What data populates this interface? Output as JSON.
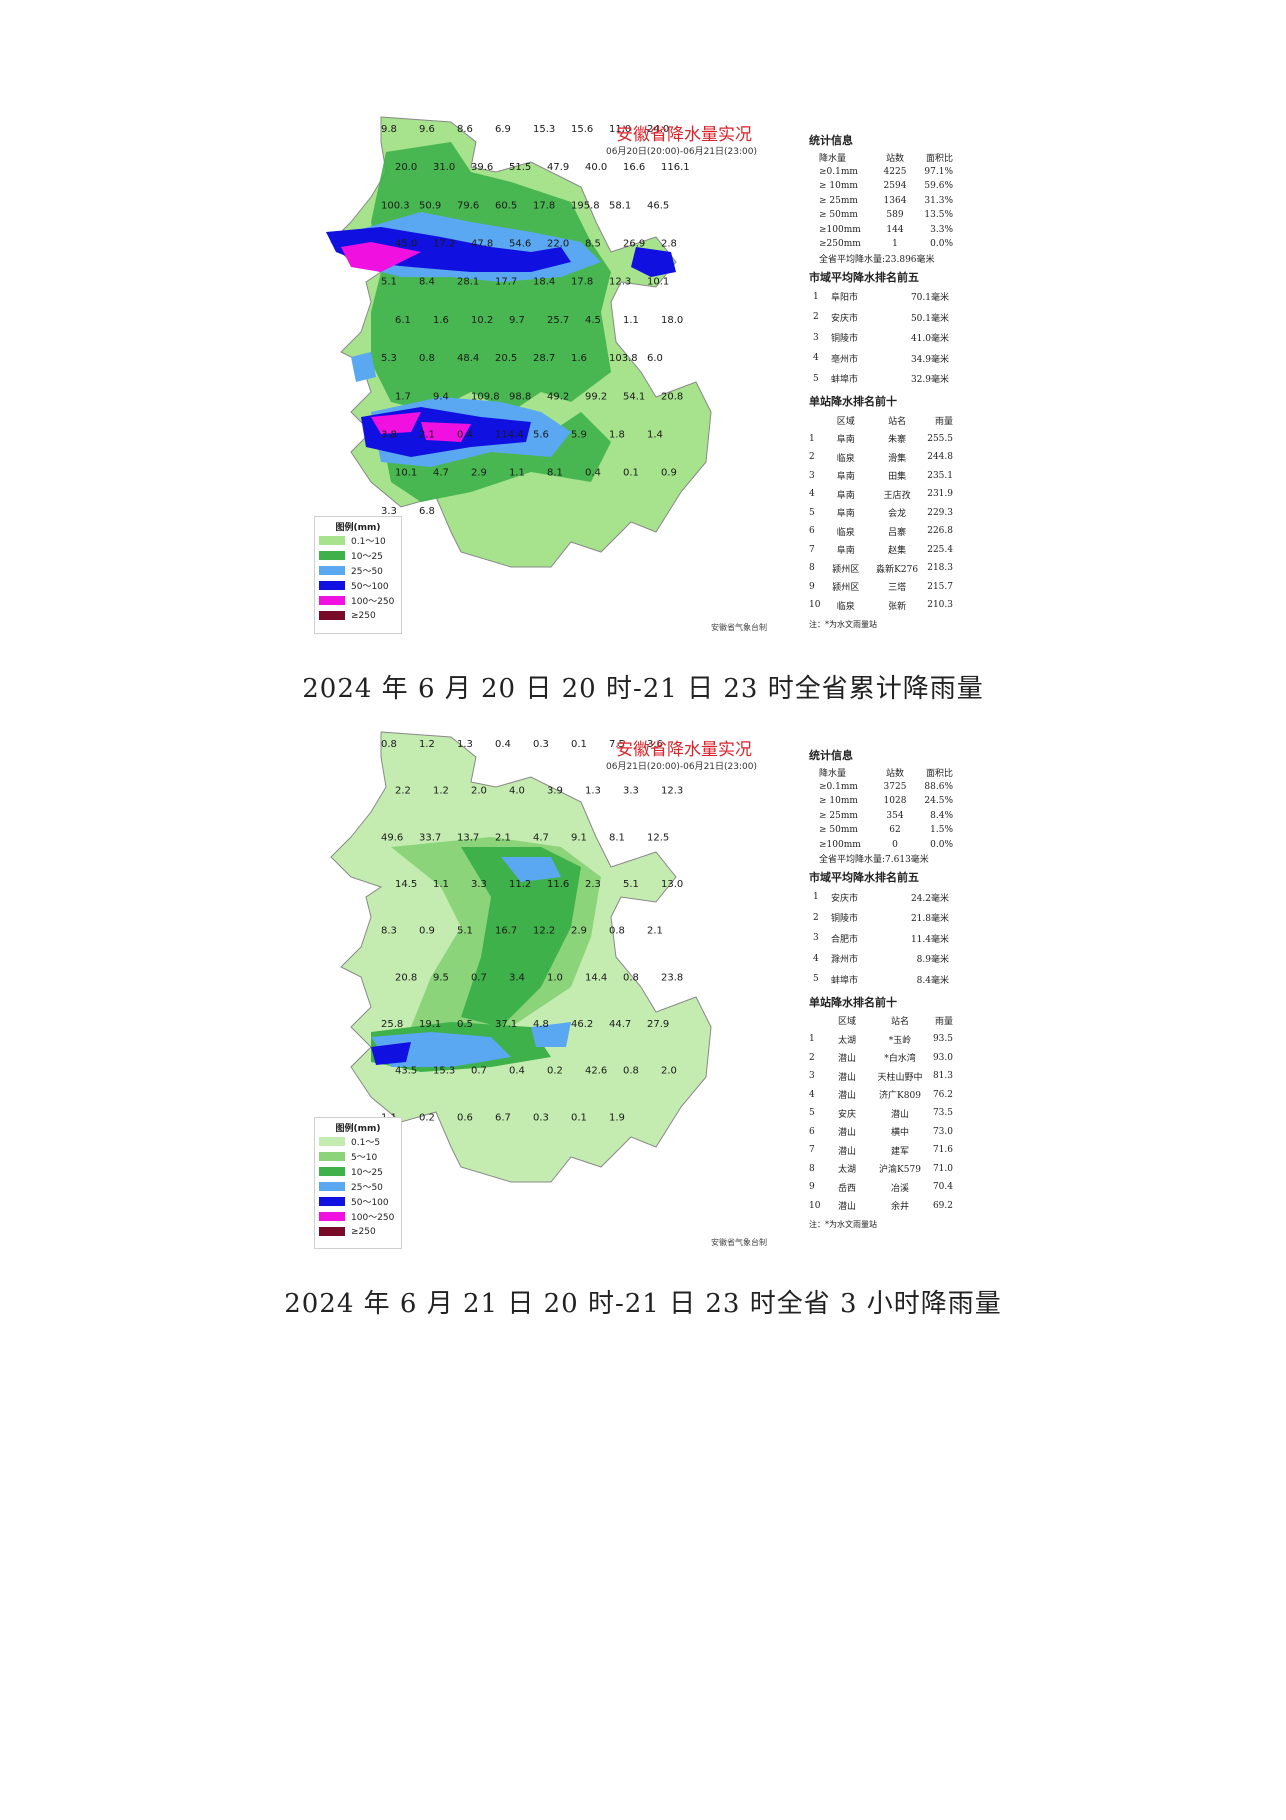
{
  "panel1": {
    "title": "安徽省降水量实况",
    "period": "06月20日(20:00)-06月21日(23:00)",
    "credit": "安徽省气象台制",
    "legend": {
      "title": "图例(mm)",
      "items": [
        {
          "label": "0.1～10",
          "color": "#a6e38c"
        },
        {
          "label": "10～25",
          "color": "#3fb14a"
        },
        {
          "label": "25～50",
          "color": "#5aa7f2"
        },
        {
          "label": "50～100",
          "color": "#1010e0"
        },
        {
          "label": "100～250",
          "color": "#f010e0"
        },
        {
          "label": "≥250",
          "color": "#7a0a2a"
        }
      ]
    },
    "stats": {
      "title": "统计信息",
      "headers": [
        "降水量",
        "站数",
        "面积比"
      ],
      "rows": [
        [
          "≥0.1mm",
          "4225",
          "97.1%"
        ],
        [
          "≥ 10mm",
          "2594",
          "59.6%"
        ],
        [
          "≥ 25mm",
          "1364",
          "31.3%"
        ],
        [
          "≥ 50mm",
          "589",
          "13.5%"
        ],
        [
          "≥100mm",
          "144",
          "3.3%"
        ],
        [
          "≥250mm",
          "1",
          "0.0%"
        ]
      ],
      "average": "全省平均降水量:23.896毫米"
    },
    "city_top5": {
      "title": "市域平均降水排名前五",
      "rows": [
        [
          "1",
          "阜阳市",
          "70.1毫米"
        ],
        [
          "2",
          "安庆市",
          "50.1毫米"
        ],
        [
          "3",
          "铜陵市",
          "41.0毫米"
        ],
        [
          "4",
          "亳州市",
          "34.9毫米"
        ],
        [
          "5",
          "蚌埠市",
          "32.9毫米"
        ]
      ]
    },
    "station_top10": {
      "title": "单站降水排名前十",
      "headers": [
        "",
        "区域",
        "站名",
        "雨量"
      ],
      "rows": [
        [
          "1",
          "阜南",
          "朱寨",
          "255.5"
        ],
        [
          "2",
          "临泉",
          "滑集",
          "244.8"
        ],
        [
          "3",
          "阜南",
          "田集",
          "235.1"
        ],
        [
          "4",
          "阜南",
          "王店孜",
          "231.9"
        ],
        [
          "5",
          "阜南",
          "会龙",
          "229.3"
        ],
        [
          "6",
          "临泉",
          "吕寨",
          "226.8"
        ],
        [
          "7",
          "阜南",
          "赵集",
          "225.4"
        ],
        [
          "8",
          "颍州区",
          "淼新K276",
          "218.3"
        ],
        [
          "9",
          "颍州区",
          "三塔",
          "215.7"
        ],
        [
          "10",
          "临泉",
          "张新",
          "210.3"
        ]
      ],
      "note": "注：*为水文雨量站"
    },
    "map_labels": [
      "9.8",
      "9.6",
      "8.6",
      "6.9",
      "15.3",
      "15.6",
      "11.0",
      "24.0",
      "20.0",
      "31.0",
      "39.6",
      "51.5",
      "47.9",
      "40.0",
      "16.6",
      "116.1",
      "100.3",
      "50.9",
      "79.6",
      "60.5",
      "17.8",
      "195.8",
      "58.1",
      "46.5",
      "45.0",
      "17.2",
      "47.8",
      "54.6",
      "22.0",
      "8.5",
      "26.9",
      "2.8",
      "5.1",
      "8.4",
      "28.1",
      "17.7",
      "18.4",
      "17.8",
      "12.3",
      "10.1",
      "6.1",
      "1.6",
      "10.2",
      "9.7",
      "25.7",
      "4.5",
      "1.1",
      "18.0",
      "5.3",
      "0.8",
      "48.4",
      "20.5",
      "28.7",
      "1.6",
      "103.8",
      "6.0",
      "1.7",
      "9.4",
      "109.8",
      "98.8",
      "49.2",
      "99.2",
      "54.1",
      "20.8",
      "3.8",
      "2.1",
      "0.4",
      "114.4",
      "5.6",
      "5.9",
      "1.8",
      "1.4",
      "10.1",
      "4.7",
      "2.9",
      "1.1",
      "8.1",
      "0.4",
      "0.1",
      "0.9",
      "3.3",
      "6.8"
    ],
    "caption": "2024 年 6 月 20 日 20 时-21 日 23 时全省累计降雨量"
  },
  "panel2": {
    "title": "安徽省降水量实况",
    "period": "06月21日(20:00)-06月21日(23:00)",
    "credit": "安徽省气象台制",
    "legend": {
      "title": "图例(mm)",
      "items": [
        {
          "label": "0.1～5",
          "color": "#c4ecb0"
        },
        {
          "label": "5～10",
          "color": "#8bd47a"
        },
        {
          "label": "10～25",
          "color": "#3fb14a"
        },
        {
          "label": "25～50",
          "color": "#5aa7f2"
        },
        {
          "label": "50～100",
          "color": "#1010e0"
        },
        {
          "label": "100～250",
          "color": "#f010e0"
        },
        {
          "label": "≥250",
          "color": "#7a0a2a"
        }
      ]
    },
    "stats": {
      "title": "统计信息",
      "headers": [
        "降水量",
        "站数",
        "面积比"
      ],
      "rows": [
        [
          "≥0.1mm",
          "3725",
          "88.6%"
        ],
        [
          "≥ 10mm",
          "1028",
          "24.5%"
        ],
        [
          "≥ 25mm",
          "354",
          "8.4%"
        ],
        [
          "≥ 50mm",
          "62",
          "1.5%"
        ],
        [
          "≥100mm",
          "0",
          "0.0%"
        ]
      ],
      "average": "全省平均降水量:7.613毫米"
    },
    "city_top5": {
      "title": "市域平均降水排名前五",
      "rows": [
        [
          "1",
          "安庆市",
          "24.2毫米"
        ],
        [
          "2",
          "铜陵市",
          "21.8毫米"
        ],
        [
          "3",
          "合肥市",
          "11.4毫米"
        ],
        [
          "4",
          "滁州市",
          "8.9毫米"
        ],
        [
          "5",
          "蚌埠市",
          "8.4毫米"
        ]
      ]
    },
    "station_top10": {
      "title": "单站降水排名前十",
      "headers": [
        "",
        "区域",
        "站名",
        "雨量"
      ],
      "rows": [
        [
          "1",
          "太湖",
          "*玉岭",
          "93.5"
        ],
        [
          "2",
          "潜山",
          "*白水湾",
          "93.0"
        ],
        [
          "3",
          "潜山",
          "天柱山野中",
          "81.3"
        ],
        [
          "4",
          "潜山",
          "济广K809",
          "76.2"
        ],
        [
          "5",
          "安庆",
          "潜山",
          "73.5"
        ],
        [
          "6",
          "潜山",
          "横中",
          "73.0"
        ],
        [
          "7",
          "潜山",
          "建军",
          "71.6"
        ],
        [
          "8",
          "太湖",
          "沪渝K579",
          "71.0"
        ],
        [
          "9",
          "岳西",
          "冶溪",
          "70.4"
        ],
        [
          "10",
          "潜山",
          "余井",
          "69.2"
        ]
      ],
      "note": "注：*为水文雨量站"
    },
    "map_labels": [
      "0.8",
      "1.2",
      "1.3",
      "0.4",
      "0.3",
      "0.1",
      "7.5",
      "3.6",
      "2.2",
      "1.2",
      "2.0",
      "4.0",
      "3.9",
      "1.3",
      "3.3",
      "12.3",
      "49.6",
      "33.7",
      "13.7",
      "2.1",
      "4.7",
      "9.1",
      "8.1",
      "12.5",
      "14.5",
      "1.1",
      "3.3",
      "11.2",
      "11.6",
      "2.3",
      "5.1",
      "13.0",
      "8.3",
      "0.9",
      "5.1",
      "16.7",
      "12.2",
      "2.9",
      "0.8",
      "2.1",
      "20.8",
      "9.5",
      "0.7",
      "3.4",
      "1.0",
      "14.4",
      "0.8",
      "23.8",
      "25.8",
      "19.1",
      "0.5",
      "37.1",
      "4.8",
      "46.2",
      "44.7",
      "27.9",
      "43.5",
      "15.3",
      "0.7",
      "0.4",
      "0.2",
      "42.6",
      "0.8",
      "2.0",
      "1.1",
      "0.2",
      "0.6",
      "6.7",
      "0.3",
      "0.1",
      "1.9"
    ],
    "caption": "2024 年 6 月 21 日 20 时-21 日 23 时全省 3 小时降雨量"
  }
}
